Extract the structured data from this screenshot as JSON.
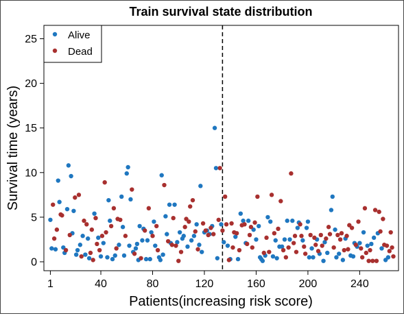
{
  "chart_data": {
    "type": "scatter",
    "title": "Train survival state distribution",
    "xlabel": "Patients(increasing risk score)",
    "ylabel": "Survival time (years)",
    "xlim": [
      -4,
      270
    ],
    "ylim": [
      -1,
      26.5
    ],
    "xticks": [
      1,
      40,
      80,
      120,
      160,
      200,
      240
    ],
    "yticks": [
      0,
      5,
      10,
      15,
      20,
      25
    ],
    "cutoff_x": 134,
    "legend_position": "top-left",
    "series": [
      {
        "name": "Alive",
        "color": "#1f77c0",
        "points": [
          [
            1,
            4.7
          ],
          [
            2,
            1.5
          ],
          [
            5,
            1.4
          ],
          [
            7,
            9.1
          ],
          [
            8,
            6.7
          ],
          [
            11,
            1.6
          ],
          [
            12,
            1.0
          ],
          [
            14,
            5.9
          ],
          [
            15,
            10.8
          ],
          [
            17,
            9.6
          ],
          [
            18,
            3.2
          ],
          [
            19,
            5.7
          ],
          [
            21,
            0.8
          ],
          [
            22,
            1.3
          ],
          [
            24,
            1.9
          ],
          [
            26,
            2.9
          ],
          [
            28,
            0.8
          ],
          [
            30,
            2.6
          ],
          [
            31,
            0.4
          ],
          [
            35,
            5.4
          ],
          [
            38,
            2.7
          ],
          [
            40,
            0.6
          ],
          [
            42,
            2.1
          ],
          [
            45,
            0.5
          ],
          [
            46,
            6.9
          ],
          [
            47,
            4.6
          ],
          [
            49,
            0.3
          ],
          [
            51,
            0.7
          ],
          [
            54,
            1.9
          ],
          [
            56,
            7.3
          ],
          [
            57,
            3.9
          ],
          [
            58,
            0.7
          ],
          [
            60,
            9.9
          ],
          [
            61,
            10.6
          ],
          [
            62,
            1.8
          ],
          [
            63,
            7.0
          ],
          [
            65,
            1.1
          ],
          [
            67,
            1.5
          ],
          [
            68,
            2.0
          ],
          [
            69,
            0.2
          ],
          [
            70,
            4.0
          ],
          [
            72,
            2.4
          ],
          [
            73,
            3.7
          ],
          [
            75,
            0.3
          ],
          [
            76,
            2.4
          ],
          [
            78,
            0.3
          ],
          [
            79,
            3.3
          ],
          [
            81,
            4.5
          ],
          [
            82,
            1.8
          ],
          [
            85,
            0.5
          ],
          [
            86,
            0.2
          ],
          [
            87,
            9.7
          ],
          [
            88,
            0.8
          ],
          [
            90,
            5.1
          ],
          [
            91,
            3.1
          ],
          [
            93,
            6.4
          ],
          [
            94,
            2.1
          ],
          [
            97,
            6.4
          ],
          [
            99,
            2.2
          ],
          [
            101,
            3.3
          ],
          [
            103,
            2.6
          ],
          [
            104,
            2.9
          ],
          [
            107,
            1.7
          ],
          [
            110,
            2.4
          ],
          [
            112,
            2.9
          ],
          [
            114,
            4.2
          ],
          [
            116,
            1.9
          ],
          [
            117,
            8.5
          ],
          [
            118,
            1.1
          ],
          [
            120,
            3.3
          ],
          [
            122,
            3.5
          ],
          [
            124,
            3.1
          ],
          [
            126,
            4.0
          ],
          [
            128,
            15.0
          ],
          [
            129,
            10.5
          ],
          [
            130,
            0.4
          ],
          [
            133,
            4.2
          ],
          [
            135,
            2.2
          ],
          [
            138,
            1.8
          ],
          [
            140,
            0.3
          ],
          [
            144,
            2.8
          ],
          [
            146,
            0.3
          ],
          [
            148,
            5.4
          ],
          [
            150,
            4.6
          ],
          [
            152,
            2.1
          ],
          [
            154,
            4.6
          ],
          [
            158,
            3.6
          ],
          [
            160,
            2.5
          ],
          [
            162,
            4.0
          ],
          [
            163,
            0.5
          ],
          [
            164,
            0.3
          ],
          [
            165,
            0.1
          ],
          [
            167,
            0.7
          ],
          [
            169,
            5.0
          ],
          [
            171,
            4.5
          ],
          [
            173,
            0.6
          ],
          [
            175,
            2.4
          ],
          [
            176,
            0.4
          ],
          [
            178,
            1.7
          ],
          [
            180,
            1.7
          ],
          [
            182,
            2.5
          ],
          [
            184,
            4.6
          ],
          [
            186,
            2.5
          ],
          [
            188,
            4.6
          ],
          [
            192,
            3.8
          ],
          [
            193,
            4.4
          ],
          [
            196,
            2.4
          ],
          [
            199,
            3.8
          ],
          [
            200,
            4.5
          ],
          [
            201,
            0.5
          ],
          [
            203,
            1.5
          ],
          [
            204,
            0.5
          ],
          [
            207,
            2.5
          ],
          [
            209,
            0.9
          ],
          [
            212,
            0.1
          ],
          [
            213,
            2.2
          ],
          [
            215,
            1.0
          ],
          [
            218,
            5.8
          ],
          [
            219,
            7.3
          ],
          [
            221,
            3.6
          ],
          [
            222,
            0.5
          ],
          [
            224,
            0.9
          ],
          [
            227,
            0.2
          ],
          [
            229,
            2.6
          ],
          [
            233,
            0.7
          ],
          [
            235,
            0.6
          ],
          [
            236,
            2.1
          ],
          [
            238,
            1.7
          ],
          [
            240,
            2.1
          ],
          [
            243,
            3.3
          ],
          [
            246,
            1.8
          ],
          [
            249,
            2.0
          ],
          [
            251,
            2.7
          ],
          [
            254,
            3.2
          ],
          [
            257,
            1.5
          ],
          [
            260,
            0.2
          ],
          [
            262,
            0.5
          ]
        ]
      },
      {
        "name": "Dead",
        "color": "#a8302f",
        "points": [
          [
            3,
            6.4
          ],
          [
            4,
            2.6
          ],
          [
            6,
            3.6
          ],
          [
            9,
            5.3
          ],
          [
            10,
            5.2
          ],
          [
            13,
            1.3
          ],
          [
            16,
            3.0
          ],
          [
            20,
            7.2
          ],
          [
            23,
            7.5
          ],
          [
            25,
            0.6
          ],
          [
            27,
            4.6
          ],
          [
            29,
            4.2
          ],
          [
            32,
            1.0
          ],
          [
            33,
            3.6
          ],
          [
            34,
            0.2
          ],
          [
            36,
            4.9
          ],
          [
            37,
            2.0
          ],
          [
            39,
            1.3
          ],
          [
            41,
            2.9
          ],
          [
            43,
            8.9
          ],
          [
            44,
            3.3
          ],
          [
            48,
            4.0
          ],
          [
            50,
            6.0
          ],
          [
            52,
            1.5
          ],
          [
            53,
            4.8
          ],
          [
            55,
            4.7
          ],
          [
            59,
            2.9
          ],
          [
            64,
            8.1
          ],
          [
            66,
            0.9
          ],
          [
            71,
            0.4
          ],
          [
            74,
            3.5
          ],
          [
            77,
            6.0
          ],
          [
            80,
            2.9
          ],
          [
            83,
            4.0
          ],
          [
            84,
            1.3
          ],
          [
            89,
            8.6
          ],
          [
            92,
            2.3
          ],
          [
            95,
            1.9
          ],
          [
            96,
            4.9
          ],
          [
            98,
            1.8
          ],
          [
            100,
            0.1
          ],
          [
            102,
            1.1
          ],
          [
            105,
            3.9
          ],
          [
            106,
            4.8
          ],
          [
            108,
            4.5
          ],
          [
            109,
            6.2
          ],
          [
            111,
            6.9
          ],
          [
            113,
            3.4
          ],
          [
            115,
            1.4
          ],
          [
            119,
            4.3
          ],
          [
            121,
            3.5
          ],
          [
            123,
            3.0
          ],
          [
            125,
            3.8
          ],
          [
            127,
            3.1
          ],
          [
            131,
            4.7
          ],
          [
            132,
            10.5
          ],
          [
            134,
            3.5
          ],
          [
            136,
            7.3
          ],
          [
            137,
            4.2
          ],
          [
            139,
            0.2
          ],
          [
            141,
            4.3
          ],
          [
            142,
            1.6
          ],
          [
            143,
            3.3
          ],
          [
            145,
            3.2
          ],
          [
            147,
            1.3
          ],
          [
            149,
            4.1
          ],
          [
            151,
            4.2
          ],
          [
            153,
            2.0
          ],
          [
            155,
            3.0
          ],
          [
            156,
            3.9
          ],
          [
            157,
            1.6
          ],
          [
            159,
            4.4
          ],
          [
            161,
            7.3
          ],
          [
            166,
            1.0
          ],
          [
            168,
            2.7
          ],
          [
            170,
            1.1
          ],
          [
            172,
            7.5
          ],
          [
            174,
            3.2
          ],
          [
            177,
            3.7
          ],
          [
            179,
            6.8
          ],
          [
            181,
            1.3
          ],
          [
            183,
            0.5
          ],
          [
            185,
            1.6
          ],
          [
            187,
            9.9
          ],
          [
            189,
            2.1
          ],
          [
            190,
            2.9
          ],
          [
            191,
            1.1
          ],
          [
            194,
            4.2
          ],
          [
            195,
            2.9
          ],
          [
            197,
            1.7
          ],
          [
            198,
            0.9
          ],
          [
            202,
            3.0
          ],
          [
            205,
            2.7
          ],
          [
            206,
            1.9
          ],
          [
            208,
            1.2
          ],
          [
            210,
            3.0
          ],
          [
            211,
            1.8
          ],
          [
            214,
            2.6
          ],
          [
            216,
            3.9
          ],
          [
            217,
            3.1
          ],
          [
            220,
            1.6
          ],
          [
            223,
            3.0
          ],
          [
            225,
            2.5
          ],
          [
            226,
            3.2
          ],
          [
            228,
            1.3
          ],
          [
            230,
            2.9
          ],
          [
            231,
            1.4
          ],
          [
            232,
            4.1
          ],
          [
            234,
            3.8
          ],
          [
            237,
            1.9
          ],
          [
            239,
            4.5
          ],
          [
            241,
            1.5
          ],
          [
            242,
            0.5
          ],
          [
            244,
            6.0
          ],
          [
            245,
            1.0
          ],
          [
            247,
            0.1
          ],
          [
            248,
            1.3
          ],
          [
            250,
            0.1
          ],
          [
            252,
            5.8
          ],
          [
            253,
            0.1
          ],
          [
            255,
            5.6
          ],
          [
            256,
            3.4
          ],
          [
            258,
            4.8
          ],
          [
            259,
            1.9
          ],
          [
            261,
            1.8
          ],
          [
            263,
            1.2
          ],
          [
            264,
            3.3
          ],
          [
            265,
            1.6
          ],
          [
            266,
            0.6
          ]
        ]
      }
    ]
  }
}
